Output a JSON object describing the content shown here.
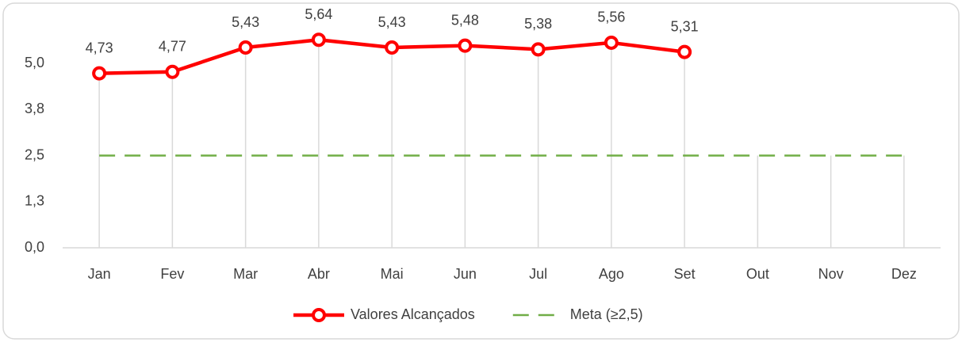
{
  "chart_data": {
    "type": "line",
    "categories": [
      "Jan",
      "Fev",
      "Mar",
      "Abr",
      "Mai",
      "Jun",
      "Jul",
      "Ago",
      "Set",
      "Out",
      "Nov",
      "Dez"
    ],
    "series": [
      {
        "name": "Valores Alcançados",
        "color": "#ff0000",
        "values": [
          4.73,
          4.77,
          5.43,
          5.64,
          5.43,
          5.48,
          5.38,
          5.56,
          5.31,
          null,
          null,
          null
        ],
        "value_labels": [
          "4,73",
          "4,77",
          "5,43",
          "5,64",
          "5,43",
          "5,48",
          "5,38",
          "5,56",
          "5,31",
          null,
          null,
          null
        ],
        "markers": true
      },
      {
        "name": "Meta (≥2,5)",
        "color": "#70ad47",
        "dashed": true,
        "values": [
          2.5,
          2.5,
          2.5,
          2.5,
          2.5,
          2.5,
          2.5,
          2.5,
          2.5,
          2.5,
          2.5,
          2.5
        ]
      }
    ],
    "ylim": [
      0,
      6.25
    ],
    "yticks": [
      {
        "value": 0,
        "label": "0,0"
      },
      {
        "value": 1.25,
        "label": "1,3"
      },
      {
        "value": 2.5,
        "label": "2,5"
      },
      {
        "value": 3.75,
        "label": "3,8"
      },
      {
        "value": 5,
        "label": "5,0"
      }
    ],
    "legend": "bottom"
  }
}
